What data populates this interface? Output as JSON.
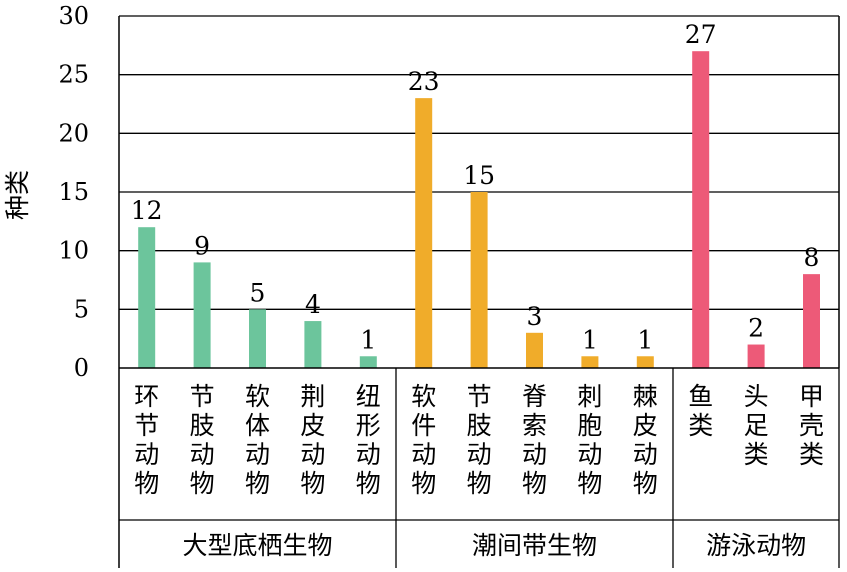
{
  "chart_data": {
    "type": "bar",
    "ylabel": "种类",
    "ylim": [
      0,
      30
    ],
    "yticks": [
      "0",
      "5",
      "10",
      "15",
      "20",
      "25",
      "30"
    ],
    "grid": true,
    "groups": [
      {
        "name": "大型底栖生物",
        "color": "#6cc59c",
        "categories": [
          "环节动物",
          "节肢动物",
          "软体动物",
          "荆皮动物",
          "纽形动物"
        ],
        "values": [
          12,
          9,
          5,
          4,
          1
        ]
      },
      {
        "name": "潮间带生物",
        "color": "#f0ac2a",
        "categories": [
          "软件动物",
          "节肢动物",
          "脊索动物",
          "刺胞动物",
          "棘皮动物"
        ],
        "values": [
          23,
          15,
          3,
          1,
          1
        ]
      },
      {
        "name": "游泳动物",
        "color": "#ed5a78",
        "categories": [
          "鱼类",
          "头足类",
          "甲壳类"
        ],
        "values": [
          27,
          2,
          8
        ]
      }
    ]
  }
}
